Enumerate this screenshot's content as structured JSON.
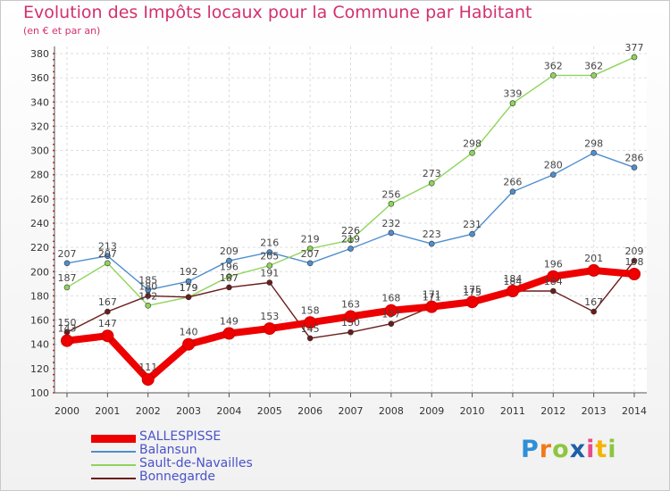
{
  "header": {
    "title": "Evolution des Impôts locaux pour la Commune par Habitant",
    "subtitle": "(en € et par an)"
  },
  "logo": {
    "text": "Proxiti"
  },
  "chart_data": {
    "type": "line",
    "title": "Evolution des Impôts locaux pour la Commune par Habitant",
    "subtitle": "(en € et par an)",
    "x": [
      "2000",
      "2001",
      "2002",
      "2003",
      "2004",
      "2005",
      "2006",
      "2007",
      "2008",
      "2009",
      "2010",
      "2011",
      "2012",
      "2013",
      "2014"
    ],
    "ylim": [
      100,
      380
    ],
    "yticks": [
      100,
      120,
      140,
      160,
      180,
      200,
      220,
      240,
      260,
      280,
      300,
      320,
      340,
      360,
      380
    ],
    "grid": true,
    "legend_position": "bottom-left",
    "series": [
      {
        "name": "SALLESPISSE",
        "color": "#ee0000",
        "thick": true,
        "values": [
          143,
          147,
          111,
          140,
          149,
          153,
          158,
          163,
          168,
          171,
          175,
          184,
          196,
          201,
          198
        ]
      },
      {
        "name": "Balansun",
        "color": "#4f8fcf",
        "thick": false,
        "values": [
          207,
          213,
          185,
          192,
          209,
          216,
          207,
          219,
          232,
          223,
          231,
          266,
          280,
          298,
          286
        ]
      },
      {
        "name": "Sault-de-Navailles",
        "color": "#8fd45a",
        "thick": false,
        "values": [
          187,
          207,
          172,
          179,
          196,
          205,
          219,
          226,
          256,
          273,
          298,
          339,
          362,
          362,
          377
        ]
      },
      {
        "name": "Bonnegarde",
        "color": "#6b1c1c",
        "thick": false,
        "values": [
          150,
          167,
          180,
          179,
          187,
          191,
          145,
          150,
          157,
          171,
          175,
          184,
          184,
          167,
          209
        ]
      }
    ]
  }
}
